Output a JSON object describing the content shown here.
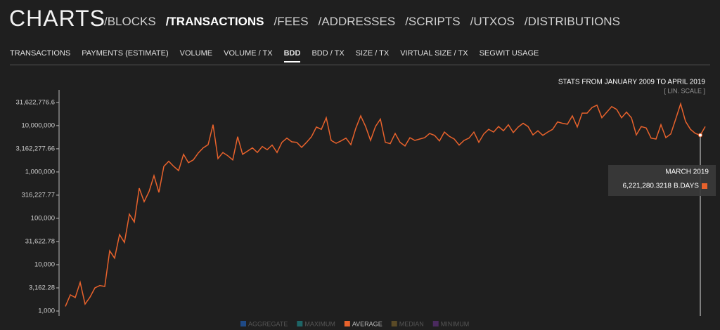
{
  "header": {
    "title": "CHARTS",
    "nav": [
      "/BLOCKS",
      "/TRANSACTIONS",
      "/FEES",
      "/ADDRESSES",
      "/SCRIPTS",
      "/UTXOS",
      "/DISTRIBUTIONS"
    ],
    "active_nav": 1
  },
  "tabs": {
    "items": [
      "TRANSACTIONS",
      "PAYMENTS (ESTIMATE)",
      "VOLUME",
      "VOLUME / TX",
      "BDD",
      "BDD / TX",
      "SIZE / TX",
      "VIRTUAL SIZE / TX",
      "SEGWIT USAGE"
    ],
    "active": 4
  },
  "chart_data": {
    "type": "line",
    "subtitle": "STATS FROM JANUARY 2009 TO APRIL 2019",
    "scale_label": "[ LIN. SCALE ]",
    "unit": "B.DAYS",
    "log_scale": true,
    "grid": false,
    "color": "#e8622c",
    "ylim": [
      1000,
      55000000
    ],
    "yticks": [
      {
        "value": 1000,
        "label": "1,000"
      },
      {
        "value": 3162.28,
        "label": "3,162.28"
      },
      {
        "value": 10000,
        "label": "10,000"
      },
      {
        "value": 31622.78,
        "label": "31,622.78"
      },
      {
        "value": 100000,
        "label": "100,000"
      },
      {
        "value": 316227.77,
        "label": "316,227.77"
      },
      {
        "value": 1000000,
        "label": "1,000,000"
      },
      {
        "value": 3162277.66,
        "label": "3,162,277.66"
      },
      {
        "value": 10000000,
        "label": "10,000,000"
      },
      {
        "value": 31622776.6,
        "label": "31,622,776.6"
      }
    ],
    "categories": [
      null,
      null,
      null,
      null,
      null,
      null,
      null,
      null,
      null,
      null,
      null,
      null,
      null,
      null,
      null,
      null,
      null,
      null,
      null,
      null,
      null,
      null,
      null,
      null,
      null,
      null,
      null,
      null,
      null,
      null,
      null,
      null,
      null,
      null,
      null,
      null,
      null,
      null,
      null,
      null,
      null,
      null,
      null,
      null,
      null,
      null,
      null,
      null,
      null,
      null,
      null,
      null,
      null,
      null,
      null,
      null,
      null,
      null,
      null,
      null,
      null,
      null,
      null,
      null,
      null,
      null,
      null,
      null,
      null,
      null,
      null,
      null,
      null,
      null,
      null,
      null,
      null,
      null,
      null,
      null,
      null,
      null,
      null,
      null,
      null,
      null,
      null,
      null,
      null,
      null,
      null,
      null,
      null,
      null,
      null,
      null,
      null,
      null,
      null,
      null,
      null,
      null,
      null,
      null,
      null,
      null,
      null,
      null,
      null,
      null,
      null,
      null,
      null,
      null,
      null,
      null,
      null,
      null,
      null,
      null,
      null,
      null,
      null,
      null,
      null,
      null,
      null,
      null,
      null,
      "MARCH 2019",
      null
    ],
    "values": [
      1259,
      2239,
      1950,
      4169,
      1413,
      1995,
      3162,
      3548,
      3388,
      19953,
      13804,
      44668,
      30200,
      123000,
      83176,
      446700,
      229000,
      380000,
      832000,
      363000,
      1318000,
      1698000,
      1318000,
      1072000,
      2399000,
      1585000,
      1820000,
      2570000,
      3311000,
      3890000,
      10470000,
      1950000,
      2630000,
      2239000,
      1820000,
      5754000,
      2399000,
      2818000,
      3311000,
      2630000,
      3548000,
      3020000,
      3802000,
      2630000,
      4365000,
      5370000,
      4467000,
      4365000,
      3388000,
      4365000,
      5754000,
      9333000,
      8318000,
      14790000,
      4786000,
      4169000,
      4677000,
      5370000,
      3890000,
      8710000,
      16220000,
      9550000,
      4786000,
      9550000,
      13800000,
      4365000,
      4074000,
      6761000,
      4365000,
      3631000,
      5495000,
      4786000,
      5129000,
      5495000,
      6761000,
      6166000,
      4677000,
      7244000,
      5888000,
      5129000,
      3802000,
      4786000,
      5370000,
      7244000,
      4365000,
      6607000,
      8318000,
      7244000,
      9550000,
      7762000,
      10470000,
      7079000,
      9333000,
      11220000,
      9550000,
      6310000,
      7762000,
      6166000,
      7244000,
      8318000,
      12020000,
      11220000,
      10720000,
      16220000,
      9333000,
      18620000,
      18620000,
      24550000,
      27540000,
      14790000,
      19500000,
      25700000,
      22390000,
      14790000,
      19500000,
      14790000,
      6310000,
      9550000,
      8913000,
      5370000,
      5129000,
      10470000,
      5495000,
      6607000,
      13800000,
      29510000,
      12300000,
      8318000,
      6761000,
      6221280.3218,
      9550000
    ],
    "value_labels": [
      null,
      null,
      null,
      null,
      null,
      null,
      null,
      null,
      null,
      null,
      null,
      null,
      null,
      null,
      null,
      null,
      null,
      null,
      null,
      null,
      null,
      null,
      null,
      null,
      null,
      null,
      null,
      null,
      null,
      null,
      null,
      null,
      null,
      null,
      null,
      null,
      null,
      null,
      null,
      null,
      null,
      null,
      null,
      null,
      null,
      null,
      null,
      null,
      null,
      null,
      null,
      null,
      null,
      null,
      null,
      null,
      null,
      null,
      null,
      null,
      null,
      null,
      null,
      null,
      null,
      null,
      null,
      null,
      null,
      null,
      null,
      null,
      null,
      null,
      null,
      null,
      null,
      null,
      null,
      null,
      null,
      null,
      null,
      null,
      null,
      null,
      null,
      null,
      null,
      null,
      null,
      null,
      null,
      null,
      null,
      null,
      null,
      null,
      null,
      null,
      null,
      null,
      null,
      null,
      null,
      null,
      null,
      null,
      null,
      null,
      null,
      null,
      null,
      null,
      null,
      null,
      null,
      null,
      null,
      null,
      null,
      null,
      null,
      null,
      null,
      null,
      null,
      null,
      null,
      "6,221,280.3218",
      null
    ],
    "legend": [
      {
        "name": "AGGREGATE",
        "color": "#1f4a86"
      },
      {
        "name": "MAXIMUM",
        "color": "#1d6566"
      },
      {
        "name": "AVERAGE",
        "color": "#e8622c"
      },
      {
        "name": "MEDIAN",
        "color": "#5a4a26"
      },
      {
        "name": "MINIMUM",
        "color": "#4a2a5e"
      }
    ]
  }
}
